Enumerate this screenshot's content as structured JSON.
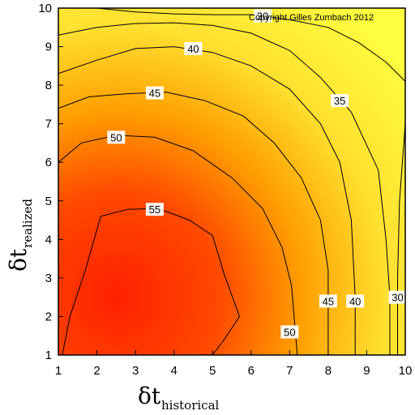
{
  "chart_data": {
    "type": "contour",
    "copyright": "Copyright Gilles Zumbach 2012",
    "xlabel": {
      "symbol": "δt",
      "subscript": "historical"
    },
    "ylabel": {
      "symbol": "δt",
      "subscript": "realized"
    },
    "xlim": [
      1,
      10
    ],
    "ylim": [
      1,
      10
    ],
    "x_ticks": [
      "1",
      "2",
      "3",
      "4",
      "5",
      "6",
      "7",
      "8",
      "9",
      "10"
    ],
    "y_ticks": [
      "1",
      "2",
      "3",
      "4",
      "5",
      "6",
      "7",
      "8",
      "9",
      "10"
    ],
    "colorscale": {
      "high": "#ff2000",
      "mid": "#ffa000",
      "low": "#ffff40"
    },
    "peak": {
      "x": 2.5,
      "y": 2.5
    },
    "levels": [
      {
        "value": 55,
        "label": "55",
        "points": [
          [
            1.1,
            1.0
          ],
          [
            1.3,
            2.0
          ],
          [
            1.7,
            3.2
          ],
          [
            2.1,
            4.6
          ],
          [
            2.8,
            4.78
          ],
          [
            3.6,
            4.8
          ],
          [
            4.4,
            4.5
          ],
          [
            5.0,
            4.1
          ],
          [
            5.3,
            3.1
          ],
          [
            5.7,
            2.0
          ],
          [
            5.3,
            1.4
          ],
          [
            5.0,
            1.0
          ]
        ]
      },
      {
        "value": 50,
        "label": "50",
        "points": [
          [
            1.0,
            6.0
          ],
          [
            1.6,
            6.5
          ],
          [
            2.5,
            6.7
          ],
          [
            3.5,
            6.65
          ],
          [
            4.5,
            6.3
          ],
          [
            5.5,
            5.6
          ],
          [
            6.3,
            4.8
          ],
          [
            6.8,
            3.8
          ],
          [
            7.05,
            2.8
          ],
          [
            7.2,
            1.0
          ]
        ]
      },
      {
        "value": 45,
        "label": "45",
        "points": [
          [
            1.0,
            7.4
          ],
          [
            1.8,
            7.7
          ],
          [
            2.8,
            7.78
          ],
          [
            3.8,
            7.82
          ],
          [
            4.8,
            7.6
          ],
          [
            5.8,
            7.2
          ],
          [
            6.6,
            6.5
          ],
          [
            7.3,
            5.6
          ],
          [
            7.8,
            4.5
          ],
          [
            8.0,
            3.2
          ],
          [
            8.0,
            1.0
          ]
        ]
      },
      {
        "value": 40,
        "label": "40",
        "points": [
          [
            1.0,
            8.3
          ],
          [
            2.0,
            8.65
          ],
          [
            3.0,
            8.95
          ],
          [
            4.0,
            9.0
          ],
          [
            5.0,
            8.85
          ],
          [
            6.0,
            8.5
          ],
          [
            7.0,
            7.9
          ],
          [
            7.8,
            7.0
          ],
          [
            8.3,
            6.0
          ],
          [
            8.6,
            4.5
          ],
          [
            8.7,
            2.5
          ],
          [
            8.7,
            1.0
          ]
        ]
      },
      {
        "value": 35,
        "label": "35",
        "points": [
          [
            1.0,
            9.3
          ],
          [
            2.0,
            9.5
          ],
          [
            3.0,
            9.6
          ],
          [
            4.0,
            9.62
          ],
          [
            5.0,
            9.55
          ],
          [
            6.0,
            9.35
          ],
          [
            7.0,
            8.9
          ],
          [
            7.8,
            8.2
          ],
          [
            8.6,
            7.3
          ],
          [
            9.3,
            5.8
          ],
          [
            9.5,
            4.0
          ],
          [
            9.6,
            2.5
          ],
          [
            9.6,
            1.0
          ]
        ]
      },
      {
        "value": 30,
        "label": "30",
        "points": [
          [
            2.0,
            10.0
          ],
          [
            3.0,
            9.9
          ],
          [
            4.0,
            9.85
          ],
          [
            5.0,
            9.83
          ],
          [
            6.0,
            9.83
          ],
          [
            7.0,
            9.7
          ],
          [
            8.0,
            9.5
          ],
          [
            8.8,
            9.1
          ],
          [
            9.5,
            8.6
          ],
          [
            9.9,
            8.2
          ],
          [
            10.0,
            8.1
          ]
        ]
      },
      {
        "value": 30,
        "label": "30",
        "points": [
          [
            9.8,
            1.0
          ],
          [
            9.8,
            3.0
          ],
          [
            9.85,
            5.0
          ],
          [
            10.0,
            7.0
          ]
        ]
      }
    ],
    "contour_labels": [
      {
        "text": "55",
        "x": 3.5,
        "y": 4.78
      },
      {
        "text": "50",
        "x": 2.5,
        "y": 6.65
      },
      {
        "text": "45",
        "x": 3.5,
        "y": 7.8
      },
      {
        "text": "40",
        "x": 4.5,
        "y": 8.95
      },
      {
        "text": "35",
        "x": 8.3,
        "y": 7.6
      },
      {
        "text": "30",
        "x": 6.3,
        "y": 9.8
      },
      {
        "text": "50",
        "x": 7.0,
        "y": 1.6
      },
      {
        "text": "45",
        "x": 8.0,
        "y": 2.4
      },
      {
        "text": "40",
        "x": 8.7,
        "y": 2.4
      },
      {
        "text": "30",
        "x": 9.8,
        "y": 2.5
      }
    ]
  }
}
